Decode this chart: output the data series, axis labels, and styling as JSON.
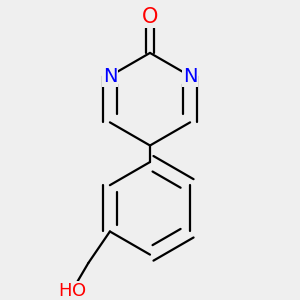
{
  "bg_color": "#efefef",
  "atom_colors": {
    "O": "#ff0000",
    "N": "#0000ff",
    "C": "#000000"
  },
  "bond_color": "#000000",
  "bond_width": 1.6,
  "font_size_atoms": 14,
  "bg_hex": "#efefef"
}
